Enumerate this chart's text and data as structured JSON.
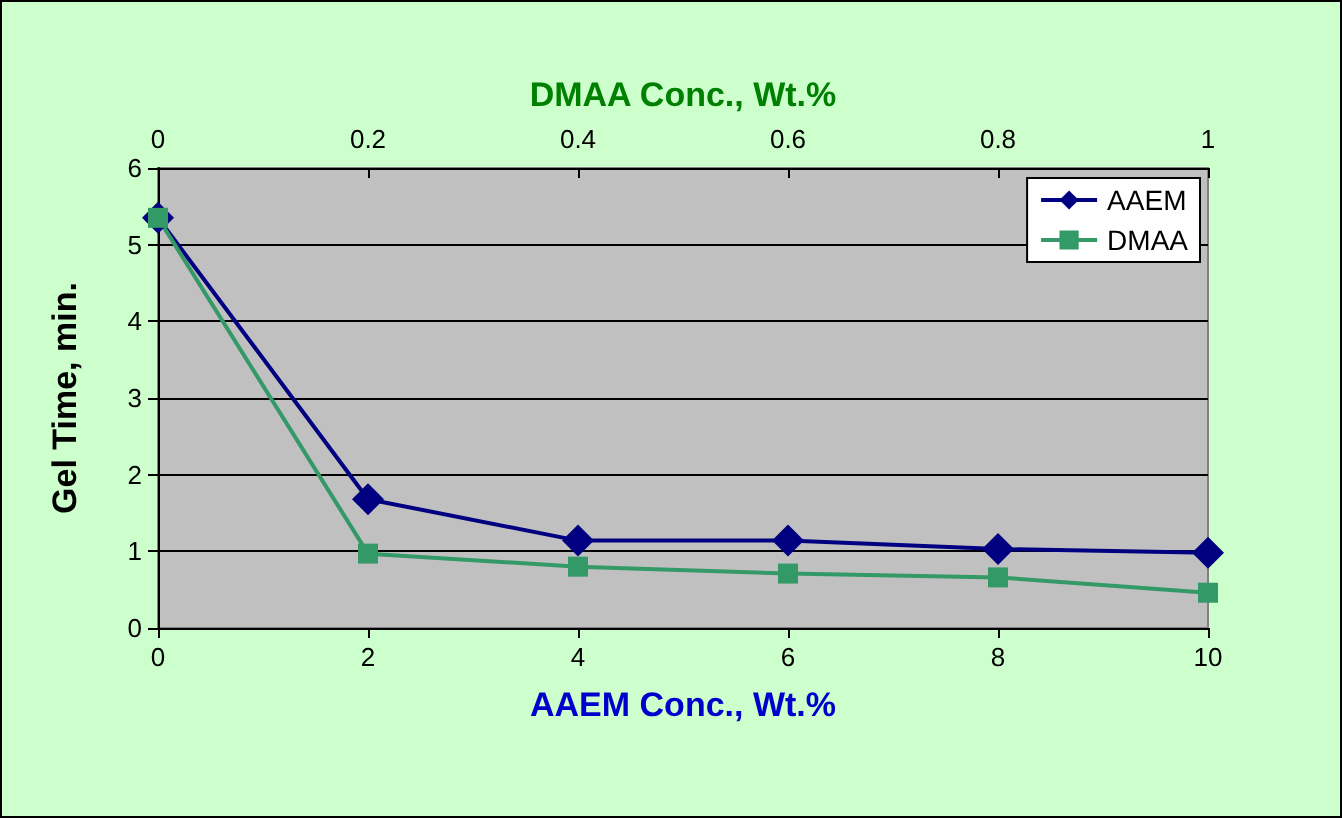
{
  "chart_data": {
    "type": "line",
    "xlabel": "AAEM Conc., Wt.%",
    "x2label": "DMAA Conc., Wt.%",
    "ylabel": "Gel Time, min.",
    "x": [
      0,
      2,
      4,
      6,
      8,
      10
    ],
    "series": [
      {
        "name": "AAEM",
        "color": "#000080",
        "marker": "diamond",
        "values": [
          5.35,
          1.68,
          1.14,
          1.14,
          1.03,
          0.98
        ]
      },
      {
        "name": "DMAA",
        "color": "#339966",
        "marker": "square",
        "axis": "x2",
        "x": [
          0,
          0.2,
          0.4,
          0.6,
          0.8,
          1
        ],
        "values": [
          5.35,
          0.97,
          0.8,
          0.71,
          0.66,
          0.46
        ]
      }
    ],
    "xlim": [
      0,
      10
    ],
    "xticks": [
      0,
      2,
      4,
      6,
      8,
      10
    ],
    "x2lim": [
      0,
      1
    ],
    "x2ticks": [
      0,
      0.2,
      0.4,
      0.6,
      0.8,
      1
    ],
    "ylim": [
      0,
      6
    ],
    "yticks": [
      0,
      1,
      2,
      3,
      4,
      5,
      6
    ],
    "grid": "y",
    "legend": "top right",
    "line_style": "solid"
  }
}
